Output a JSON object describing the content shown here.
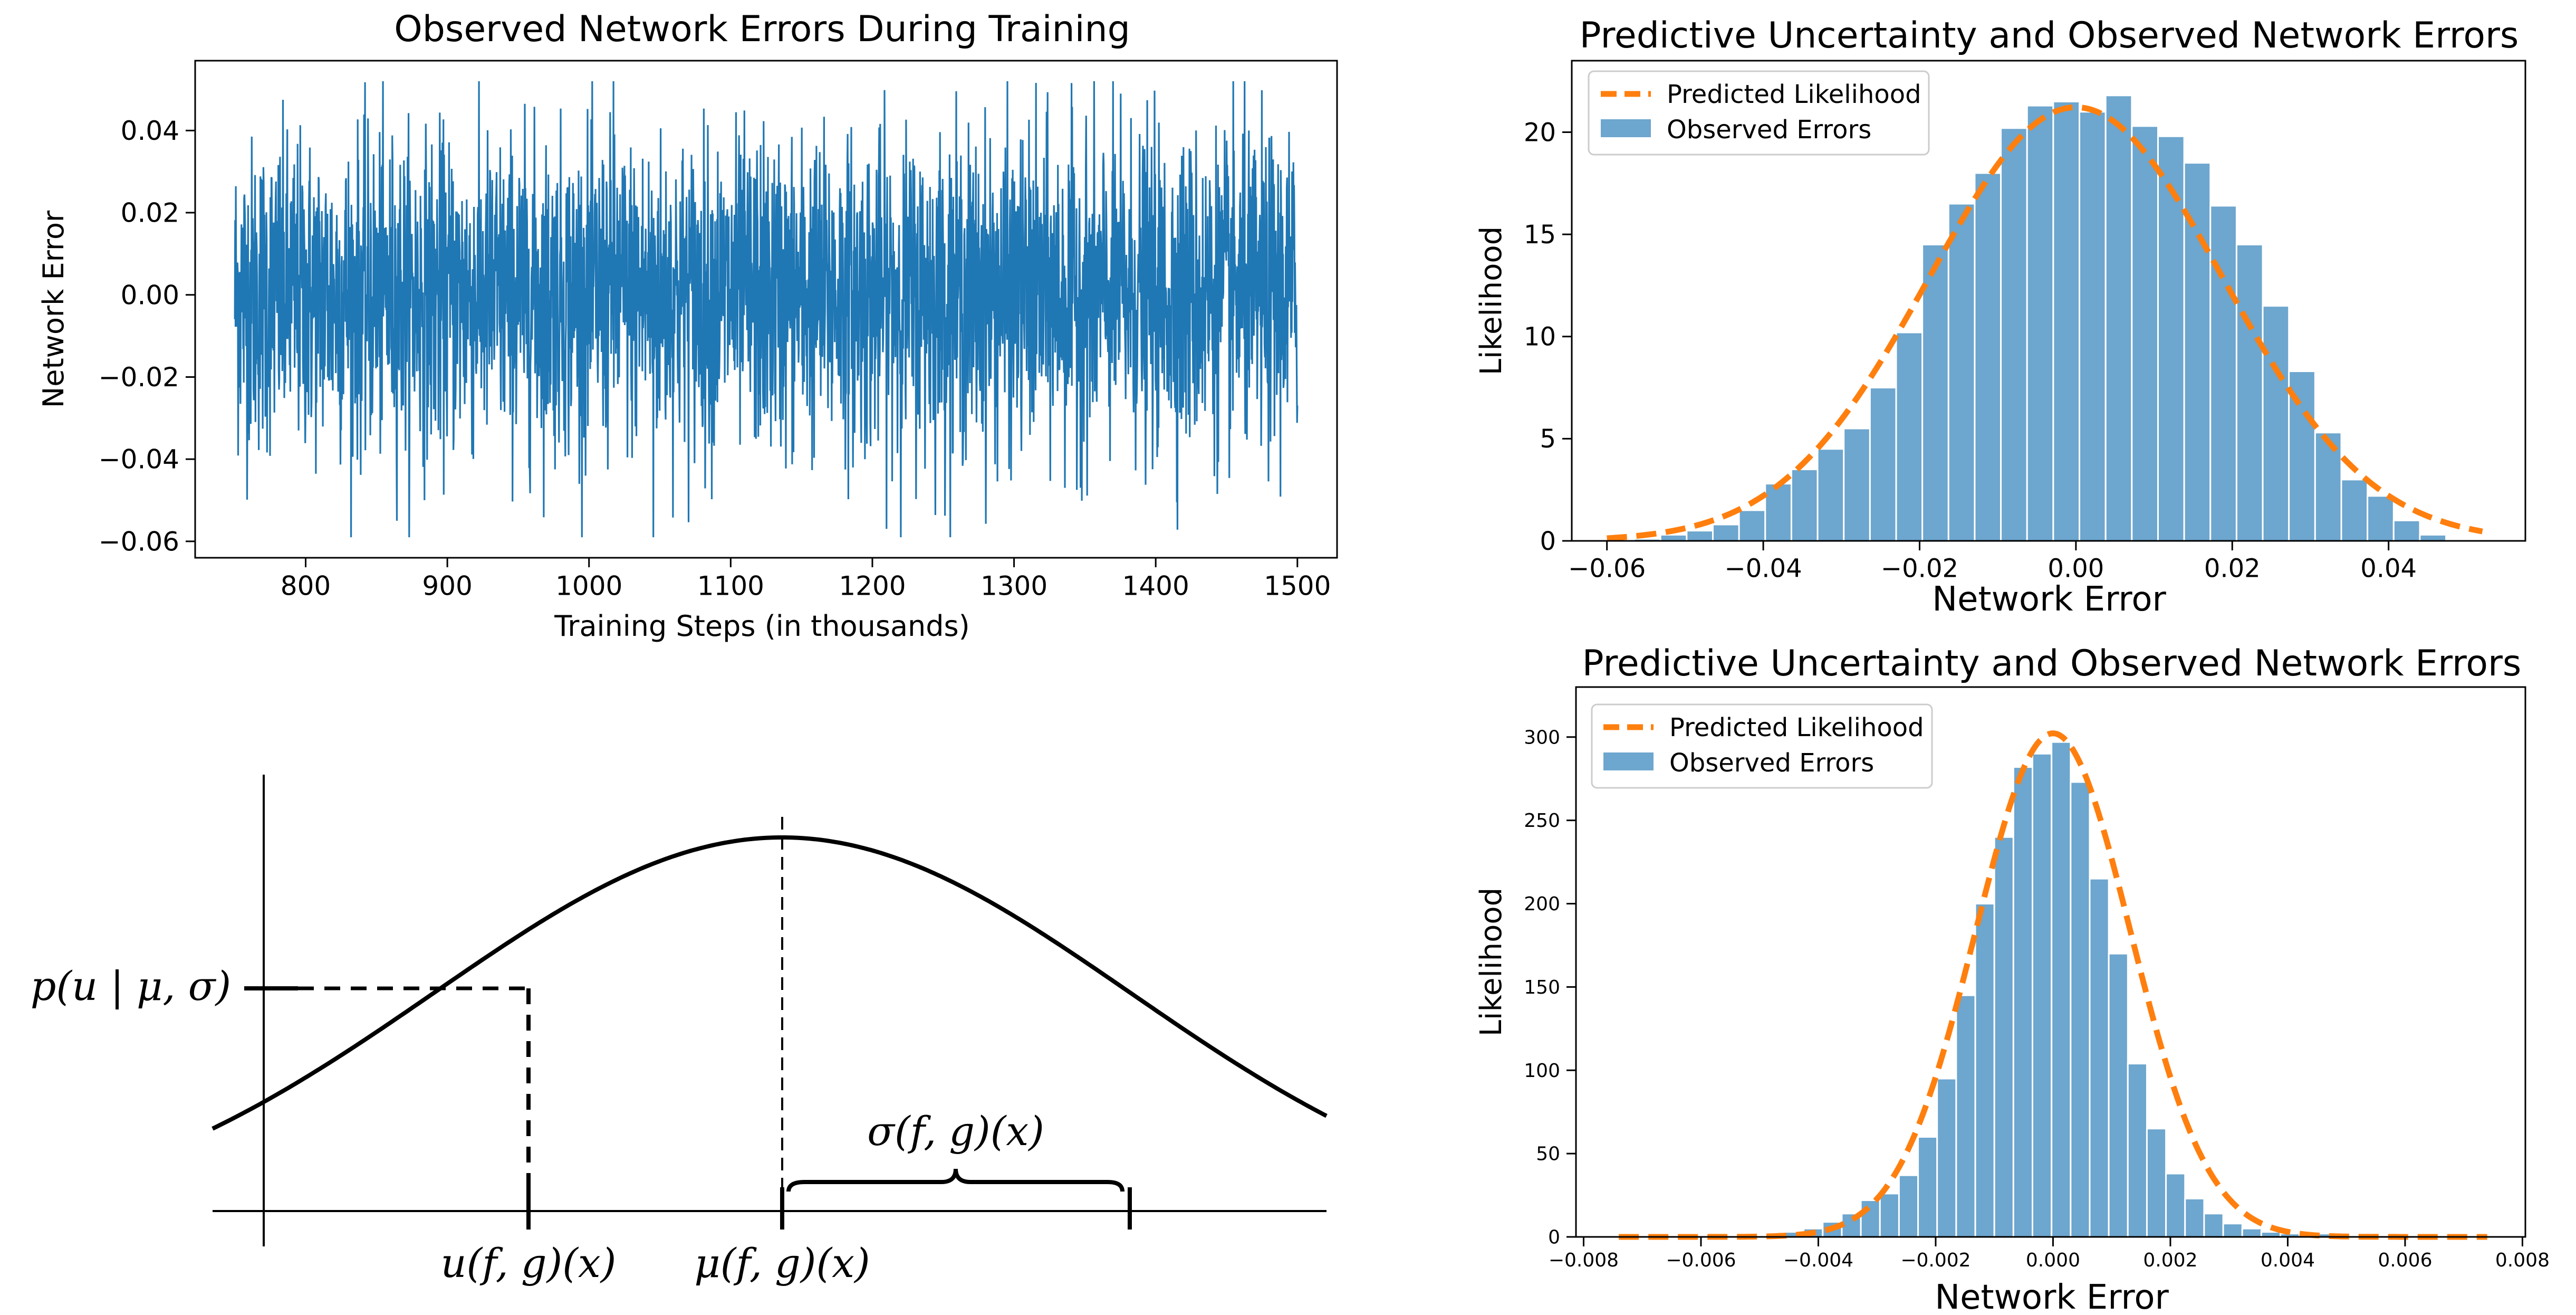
{
  "chart_data": [
    {
      "type": "line",
      "title": "Observed Network Errors During Training",
      "xlabel": "Training Steps (in thousands)",
      "ylabel": "Network Error",
      "xlim": [
        722,
        1528
      ],
      "ylim": [
        -0.064,
        0.057
      ],
      "xticks": [
        800,
        900,
        1000,
        1100,
        1200,
        1300,
        1400,
        1500
      ],
      "xtick_labels": [
        "800",
        "900",
        "1000",
        "1100",
        "1200",
        "1300",
        "1400",
        "1500"
      ],
      "yticks": [
        0.04,
        0.02,
        0.0,
        -0.02,
        -0.04,
        -0.06
      ],
      "ytick_labels": [
        "0.04",
        "0.02",
        "0.00",
        "−0.02",
        "−0.04",
        "−0.06"
      ],
      "series": [
        {
          "x_range": [
            750,
            1500
          ],
          "std": 0.019,
          "min": -0.059,
          "max": 0.052,
          "color": "#1f77b4"
        }
      ],
      "grid": false
    },
    {
      "type": "bar",
      "title": "Predictive Uncertainty and Observed Network Errors",
      "xlabel": "Network Error",
      "ylabel": "Likelihood",
      "xlim": [
        -0.0645,
        0.0575
      ],
      "ylim": [
        0,
        23.5
      ],
      "xticks": [
        -0.06,
        -0.04,
        -0.02,
        0.0,
        0.02,
        0.04
      ],
      "xtick_labels": [
        "−0.06",
        "−0.04",
        "−0.02",
        "0.00",
        "0.02",
        "0.04"
      ],
      "yticks": [
        0,
        5,
        10,
        15,
        20
      ],
      "ytick_labels": [
        "0",
        "5",
        "10",
        "15",
        "20"
      ],
      "bins": {
        "start": -0.0565,
        "width": 0.00335,
        "counts": [
          0.1,
          0.3,
          0.5,
          0.8,
          1.5,
          2.8,
          3.5,
          4.5,
          5.5,
          7.5,
          10.2,
          14.5,
          16.5,
          18.0,
          20.2,
          21.3,
          21.5,
          21.0,
          21.8,
          20.3,
          19.8,
          18.5,
          16.4,
          14.5,
          11.5,
          8.3,
          5.3,
          3.0,
          2.2,
          1.0,
          0.3
        ]
      },
      "curve": {
        "mean": 0.0,
        "std": 0.0188,
        "from": -0.06,
        "to": 0.052
      },
      "legend": {
        "position": "top-left",
        "entries": [
          "Predicted Likelihood",
          "Observed Errors"
        ]
      },
      "colors": {
        "bars": "#1f77b4",
        "curve": "#ff7f0e"
      }
    },
    {
      "type": "bar",
      "title": "Predictive Uncertainty and Observed Network Errors",
      "xlabel": "Network Error",
      "ylabel": "Likelihood",
      "xlim": [
        -0.00813,
        0.00805
      ],
      "ylim": [
        0,
        330
      ],
      "xticks": [
        -0.008,
        -0.006,
        -0.004,
        -0.002,
        0.0,
        0.002,
        0.004,
        0.006,
        0.008
      ],
      "xtick_labels": [
        "−0.008",
        "−0.006",
        "−0.004",
        "−0.002",
        "0.000",
        "0.002",
        "0.004",
        "0.006",
        "0.008"
      ],
      "yticks": [
        0,
        50,
        100,
        150,
        200,
        250,
        300
      ],
      "ytick_labels": [
        "0",
        "50",
        "100",
        "150",
        "200",
        "250",
        "300"
      ],
      "bins": {
        "start": -0.0049,
        "width": 0.000325,
        "counts": [
          2,
          3,
          5,
          9,
          14,
          22,
          26,
          37,
          60,
          95,
          145,
          200,
          240,
          282,
          290,
          297,
          273,
          215,
          170,
          104,
          65,
          38,
          23,
          14,
          8,
          5,
          3,
          2,
          2,
          2
        ]
      },
      "curve": {
        "mean": 0.0,
        "std": 0.00132,
        "from": -0.0074,
        "to": 0.0074
      },
      "legend": {
        "position": "top-left",
        "entries": [
          "Predicted Likelihood",
          "Observed Errors"
        ]
      },
      "colors": {
        "bars": "#1f77b4",
        "curve": "#ff7f0e"
      }
    }
  ],
  "diagram": {
    "labels": {
      "density": "p(u | μ, σ)",
      "sigma": "σ(f, g)(x)",
      "u": "u(f, g)(x)",
      "mu": "μ(f, g)(x)"
    }
  }
}
